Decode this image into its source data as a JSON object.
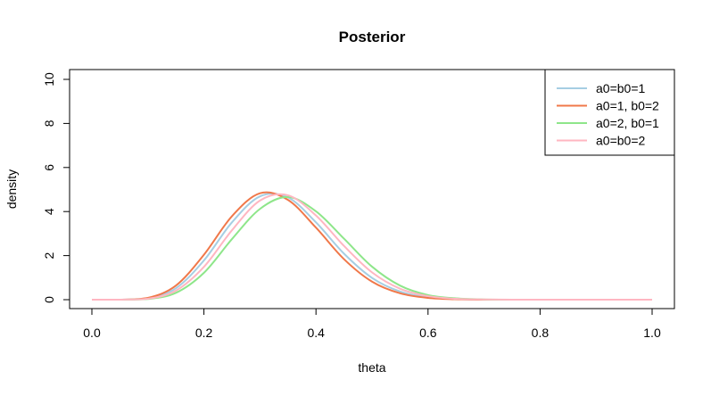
{
  "chart_data": {
    "type": "line",
    "title": "Posterior",
    "xlabel": "theta",
    "ylabel": "density",
    "xlim": [
      0,
      1
    ],
    "ylim": [
      0,
      10
    ],
    "x_ticks": [
      "0.0",
      "0.2",
      "0.4",
      "0.6",
      "0.8",
      "1.0"
    ],
    "y_ticks": [
      "0",
      "2",
      "4",
      "6",
      "8",
      "10"
    ],
    "grid": false,
    "legend_position": "top-right",
    "x": [
      0.0,
      0.05,
      0.1,
      0.15,
      0.2,
      0.25,
      0.3,
      0.35,
      0.4,
      0.45,
      0.5,
      0.55,
      0.6,
      0.65,
      0.7,
      0.75,
      0.8,
      0.85,
      0.9,
      0.95,
      1.0
    ],
    "series": [
      {
        "name": "a0=b0=1",
        "color": "#a6cee3",
        "values": [
          0.0,
          0.0,
          0.06,
          0.52,
          1.78,
          3.51,
          4.69,
          4.64,
          3.51,
          2.09,
          0.99,
          0.37,
          0.11,
          0.03,
          0.0,
          0.0,
          0.0,
          0.0,
          0.0,
          0.0,
          0.0
        ]
      },
      {
        "name": "a0=1, b0=2",
        "color": "#f0784a",
        "values": [
          0.0,
          0.0,
          0.08,
          0.64,
          2.04,
          3.79,
          4.83,
          4.53,
          3.27,
          1.84,
          0.82,
          0.29,
          0.08,
          0.02,
          0.0,
          0.0,
          0.0,
          0.0,
          0.0,
          0.0,
          0.0
        ]
      },
      {
        "name": "a0=2, b0=1",
        "color": "#8ee68a",
        "values": [
          0.0,
          0.0,
          0.03,
          0.31,
          1.22,
          2.75,
          4.12,
          4.66,
          4.01,
          2.77,
          1.5,
          0.64,
          0.21,
          0.06,
          0.01,
          0.0,
          0.0,
          0.0,
          0.0,
          0.0,
          0.0
        ]
      },
      {
        "name": "a0=b0=2",
        "color": "#ffb6c1",
        "values": [
          0.0,
          0.0,
          0.04,
          0.41,
          1.49,
          3.15,
          4.5,
          4.74,
          3.82,
          2.44,
          1.24,
          0.5,
          0.16,
          0.04,
          0.01,
          0.0,
          0.0,
          0.0,
          0.0,
          0.0,
          0.0
        ]
      }
    ]
  }
}
